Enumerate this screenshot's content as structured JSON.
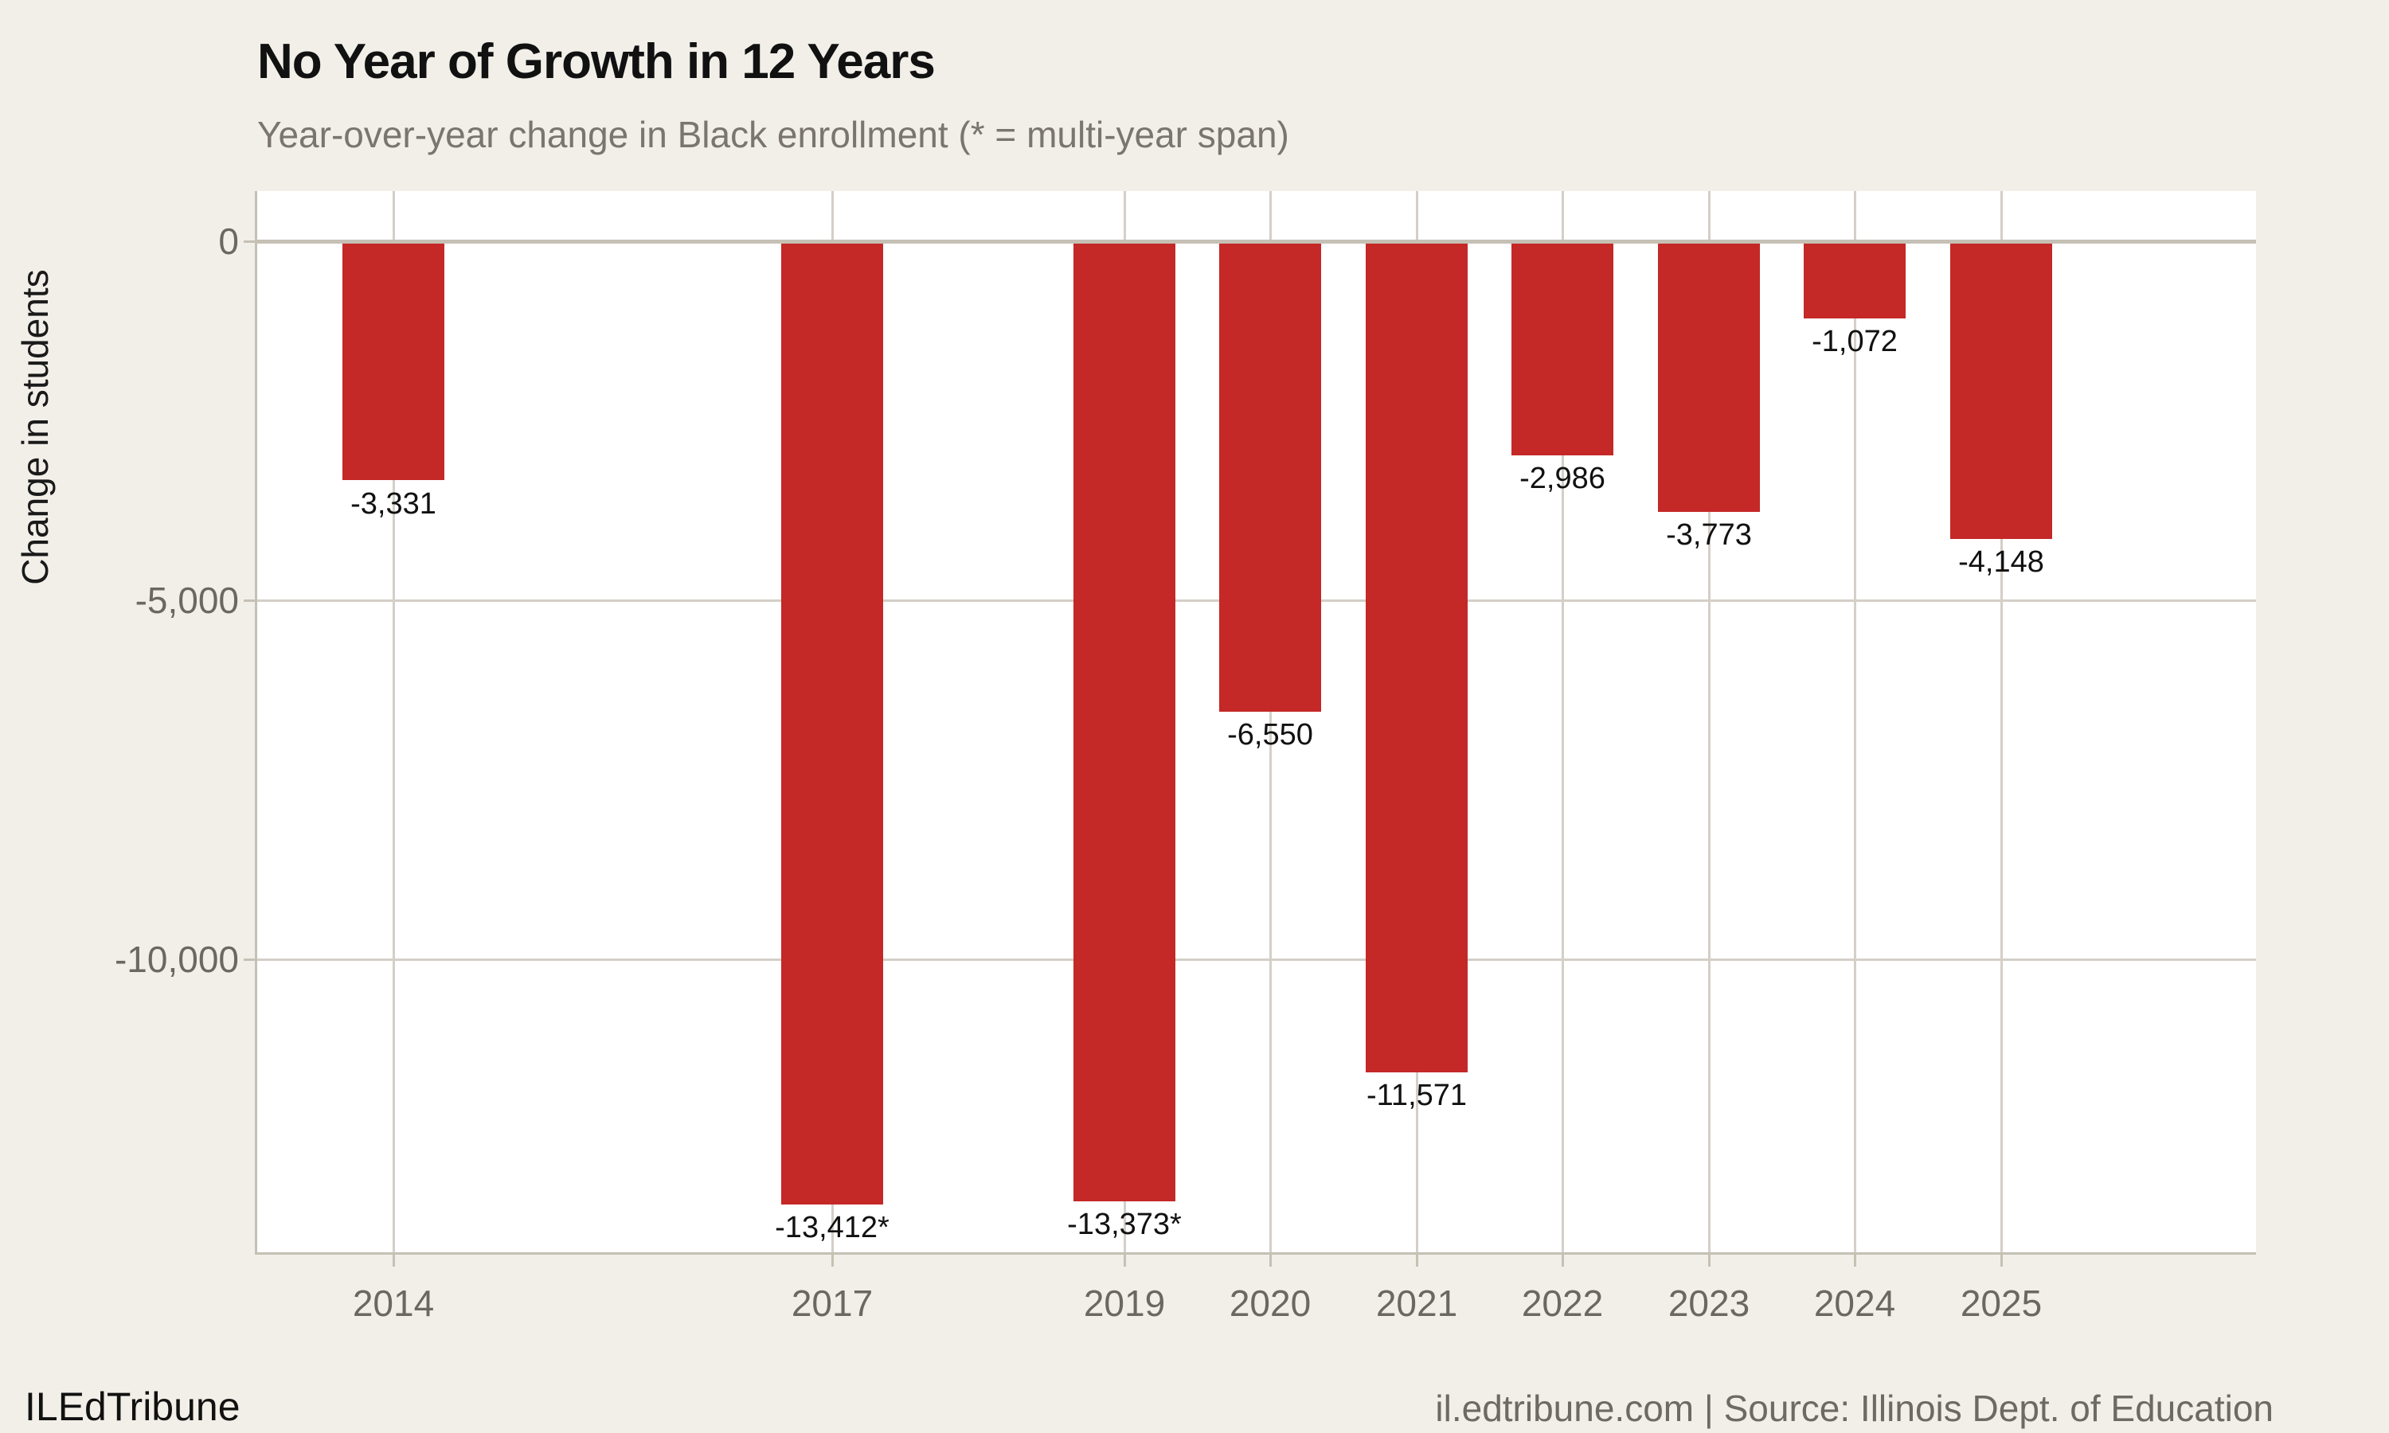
{
  "header": {
    "title": "No Year of Growth in 12 Years",
    "subtitle": "Year-over-year change in Black enrollment (* = multi-year span)"
  },
  "footer": {
    "brand": "ILEdTribune",
    "source": "il.edtribune.com | Source: Illinois Dept. of Education"
  },
  "chart_data": {
    "type": "bar",
    "title": "No Year of Growth in 12 Years",
    "subtitle": "Year-over-year change in Black enrollment (* = multi-year span)",
    "xlabel": "",
    "ylabel": "Change in students",
    "categories": [
      2014,
      2017,
      2019,
      2020,
      2021,
      2022,
      2023,
      2024,
      2025
    ],
    "values": [
      -3331,
      -13412,
      -13373,
      -6550,
      -11571,
      -2986,
      -3773,
      -1072,
      -4148
    ],
    "bar_labels": [
      "-3,331",
      "-13,412*",
      "-13,373*",
      "-6,550",
      "-11,571",
      "-2,986",
      "-3,773",
      "-1,072",
      "-4,148"
    ],
    "multi_year_span_categories": [
      2017,
      2019
    ],
    "y_ticks": [
      {
        "value": 0,
        "label": "0"
      },
      {
        "value": -5000,
        "label": "-5,000"
      },
      {
        "value": -10000,
        "label": "-10,000"
      }
    ],
    "ylim": [
      -14080,
      700
    ],
    "x_axis_linear_in_year": true,
    "grid": true,
    "legend_position": "none",
    "colors": {
      "bar": "#c42827",
      "page_background": "#f2efe9",
      "plot_background": "#ffffff",
      "gridline": "#d4cfc7",
      "axis_line": "#c6c0b5",
      "tick_text": "#6c6760",
      "subtitle_text": "#7a756d",
      "title_text": "#111111"
    }
  }
}
